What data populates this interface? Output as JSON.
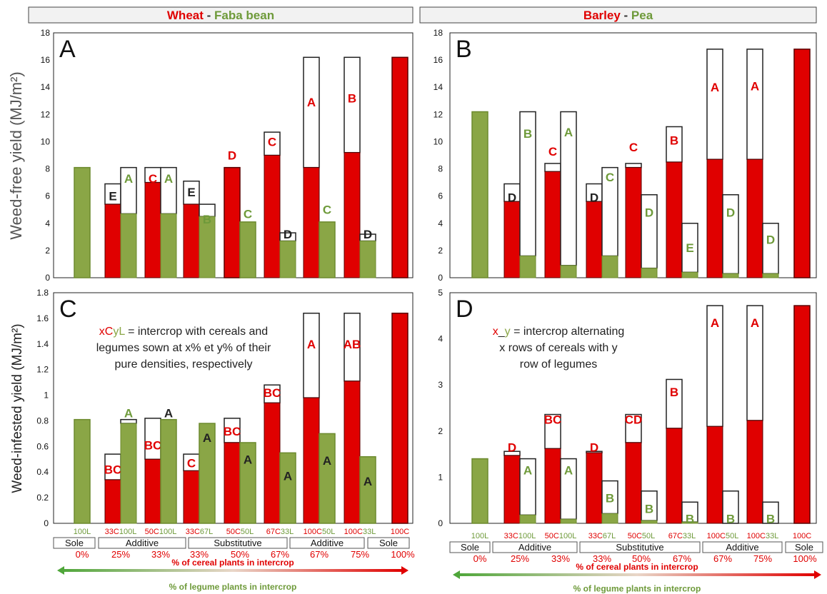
{
  "headers": {
    "left": {
      "cereal": "Wheat",
      "sep": " - ",
      "legume": "Faba bean"
    },
    "right": {
      "cereal": "Barley",
      "sep": " - ",
      "legume": "Pea"
    }
  },
  "colors": {
    "cereal": "#e00000",
    "legume": "#8aa646",
    "legume_text": "#6e9a3a",
    "dark_letter": "#222222"
  },
  "y_axis_titles": {
    "top": "Weed-free yield (MJ/m²)",
    "bottom": "Weed-infested yield (MJ/m²)"
  },
  "notes": {
    "C": {
      "lines": [
        [
          {
            "t": "xC",
            "c": "cereal"
          },
          {
            "t": "yL",
            "c": "legume"
          },
          {
            "t": " = intercrop with cereals and",
            "c": "black"
          }
        ],
        [
          {
            "t": "legumes sown at x% et y% of their",
            "c": "black"
          }
        ],
        [
          {
            "t": "pure densities, respectively",
            "c": "black"
          }
        ]
      ]
    },
    "D": {
      "lines": [
        [
          {
            "t": "x",
            "c": "cereal"
          },
          {
            "t": "_",
            "c": "black"
          },
          {
            "t": "y",
            "c": "legume"
          },
          {
            "t": " = intercrop alternating",
            "c": "black"
          }
        ],
        [
          {
            "t": "x rows of cereals with y",
            "c": "black"
          }
        ],
        [
          {
            "t": "row of legumes",
            "c": "black"
          }
        ]
      ]
    }
  },
  "bottom_axis": {
    "left": {
      "treatments": [
        {
          "c": "",
          "l": "100L"
        },
        {
          "c": "33C",
          "l": "100L"
        },
        {
          "c": "50C",
          "l": "100L"
        },
        {
          "c": "33C",
          "l": "67L"
        },
        {
          "c": "50C",
          "l": "50L"
        },
        {
          "c": "67C",
          "l": "33L"
        },
        {
          "c": "100C",
          "l": "50L"
        },
        {
          "c": "100C",
          "l": "33L"
        },
        {
          "c": "100C",
          "l": ""
        }
      ],
      "designs": [
        "Sole",
        "Additive",
        "Substitutive",
        "Additive",
        "Sole"
      ],
      "percents": [
        "0%",
        "25%",
        "33%",
        "33%",
        "50%",
        "67%",
        "67%",
        "75%",
        "100%"
      ]
    },
    "right": {
      "treatments": [
        {
          "c": "",
          "l": "100L"
        },
        {
          "c": "33C",
          "l": "100L"
        },
        {
          "c": "50C",
          "l": "100L"
        },
        {
          "c": "33C",
          "l": "67L"
        },
        {
          "c": "50C",
          "l": "50L"
        },
        {
          "c": "67C",
          "l": "33L"
        },
        {
          "c": "100C",
          "l": "50L"
        },
        {
          "c": "100C",
          "l": "33L"
        },
        {
          "c": "100C",
          "l": ""
        }
      ],
      "designs": [
        "Sole",
        "Additive",
        "Substitutive",
        "Additive",
        "Sole"
      ],
      "percents": [
        "0%",
        "25%",
        "33%",
        "33%",
        "50%",
        "67%",
        "67%",
        "75%",
        "100%"
      ]
    },
    "cereal_arrow_label": "% of cereal plants in intercrop",
    "legume_arrow_label": "% of legume plants in intercrop"
  },
  "chart_data": [
    {
      "panel": "A",
      "type": "bar",
      "ylim": [
        0,
        18
      ],
      "yticks": [
        0,
        2,
        4,
        6,
        8,
        10,
        12,
        14,
        16,
        18
      ],
      "groups": [
        {
          "bars": [
            {
              "kind": "L",
              "fill": 8.1,
              "total": 8.1
            }
          ]
        },
        {
          "bars": [
            {
              "kind": "C",
              "fill": 5.4,
              "total": 6.9,
              "letter": "E",
              "lc": "dark_letter",
              "lv": 6.0
            },
            {
              "kind": "L",
              "fill": 4.7,
              "total": 8.1,
              "letter": "A",
              "lc": "legume_text",
              "lv": 7.3
            }
          ]
        },
        {
          "bars": [
            {
              "kind": "C",
              "fill": 7.0,
              "total": 8.1,
              "letter": "C",
              "lc": "cereal",
              "lv": 7.3
            },
            {
              "kind": "L",
              "fill": 4.7,
              "total": 8.1,
              "letter": "A",
              "lc": "legume_text",
              "lv": 7.3
            }
          ]
        },
        {
          "bars": [
            {
              "kind": "C",
              "fill": 5.4,
              "total": 7.1,
              "letter": "E",
              "lc": "dark_letter",
              "lv": 6.3
            },
            {
              "kind": "L",
              "fill": 4.5,
              "total": 5.4,
              "letter": "B",
              "lc": "legume_text",
              "lv": 4.3
            }
          ]
        },
        {
          "bars": [
            {
              "kind": "C",
              "fill": 8.1,
              "total": 8.1,
              "letter": "D",
              "lc": "cereal",
              "lv": 9.0
            },
            {
              "kind": "L",
              "fill": 4.1,
              "total": 4.1,
              "letter": "C",
              "lc": "legume_text",
              "lv": 4.7
            }
          ]
        },
        {
          "bars": [
            {
              "kind": "C",
              "fill": 9.0,
              "total": 10.7,
              "letter": "C",
              "lc": "cereal",
              "lv": 10.0
            },
            {
              "kind": "L",
              "fill": 2.7,
              "total": 3.3,
              "letter": "D",
              "lc": "dark_letter",
              "lv": 3.2
            }
          ]
        },
        {
          "bars": [
            {
              "kind": "C",
              "fill": 8.1,
              "total": 16.2,
              "letter": "A",
              "lc": "cereal",
              "lv": 12.9
            },
            {
              "kind": "L",
              "fill": 4.1,
              "total": 4.1,
              "letter": "C",
              "lc": "legume_text",
              "lv": 5.0
            }
          ]
        },
        {
          "bars": [
            {
              "kind": "C",
              "fill": 9.2,
              "total": 16.2,
              "letter": "B",
              "lc": "cereal",
              "lv": 13.2
            },
            {
              "kind": "L",
              "fill": 2.7,
              "total": 3.2,
              "letter": "D",
              "lc": "dark_letter",
              "lv": 3.2
            }
          ]
        },
        {
          "bars": [
            {
              "kind": "C",
              "fill": 16.2,
              "total": 16.2
            }
          ]
        }
      ]
    },
    {
      "panel": "B",
      "type": "bar",
      "ylim": [
        0,
        18
      ],
      "yticks": [
        0,
        2,
        4,
        6,
        8,
        10,
        12,
        14,
        16,
        18
      ],
      "groups": [
        {
          "bars": [
            {
              "kind": "L",
              "fill": 12.2,
              "total": 12.2
            }
          ]
        },
        {
          "bars": [
            {
              "kind": "C",
              "fill": 5.6,
              "total": 6.9,
              "letter": "D",
              "lc": "dark_letter",
              "lv": 5.9
            },
            {
              "kind": "L",
              "fill": 1.6,
              "total": 12.2,
              "letter": "B",
              "lc": "legume_text",
              "lv": 10.6
            }
          ]
        },
        {
          "bars": [
            {
              "kind": "C",
              "fill": 7.8,
              "total": 8.4,
              "letter": "C",
              "lc": "cereal",
              "lv": 9.3
            },
            {
              "kind": "L",
              "fill": 0.9,
              "total": 12.2,
              "letter": "A",
              "lc": "legume_text",
              "lv": 10.7
            }
          ]
        },
        {
          "bars": [
            {
              "kind": "C",
              "fill": 5.6,
              "total": 6.9,
              "letter": "D",
              "lc": "dark_letter",
              "lv": 5.9
            },
            {
              "kind": "L",
              "fill": 1.6,
              "total": 8.1,
              "letter": "C",
              "lc": "legume_text",
              "lv": 7.4
            }
          ]
        },
        {
          "bars": [
            {
              "kind": "C",
              "fill": 8.1,
              "total": 8.4,
              "letter": "C",
              "lc": "cereal",
              "lv": 9.6
            },
            {
              "kind": "L",
              "fill": 0.7,
              "total": 6.1,
              "letter": "D",
              "lc": "legume_text",
              "lv": 4.8
            }
          ]
        },
        {
          "bars": [
            {
              "kind": "C",
              "fill": 8.5,
              "total": 11.1,
              "letter": "B",
              "lc": "cereal",
              "lv": 10.1
            },
            {
              "kind": "L",
              "fill": 0.4,
              "total": 4.0,
              "letter": "E",
              "lc": "legume_text",
              "lv": 2.2
            }
          ]
        },
        {
          "bars": [
            {
              "kind": "C",
              "fill": 8.7,
              "total": 16.8,
              "letter": "A",
              "lc": "cereal",
              "lv": 14.0
            },
            {
              "kind": "L",
              "fill": 0.3,
              "total": 6.1,
              "letter": "D",
              "lc": "legume_text",
              "lv": 4.8
            }
          ]
        },
        {
          "bars": [
            {
              "kind": "C",
              "fill": 8.7,
              "total": 16.8,
              "letter": "A",
              "lc": "cereal",
              "lv": 14.1
            },
            {
              "kind": "L",
              "fill": 0.3,
              "total": 4.0,
              "letter": "D",
              "lc": "legume_text",
              "lv": 2.8
            }
          ]
        },
        {
          "bars": [
            {
              "kind": "C",
              "fill": 16.8,
              "total": 16.8
            }
          ]
        }
      ]
    },
    {
      "panel": "C",
      "type": "bar",
      "ylim": [
        0,
        1.8
      ],
      "yticks": [
        0,
        0.2,
        0.4,
        0.6,
        0.8,
        1,
        1.2,
        1.4,
        1.6,
        1.8
      ],
      "groups": [
        {
          "bars": [
            {
              "kind": "L",
              "fill": 0.81,
              "total": 0.81
            }
          ]
        },
        {
          "bars": [
            {
              "kind": "C",
              "fill": 0.34,
              "total": 0.54,
              "letter": "BC",
              "lc": "cereal",
              "lv": 0.42
            },
            {
              "kind": "L",
              "fill": 0.78,
              "total": 0.81,
              "letter": "A",
              "lc": "legume_text",
              "lv": 0.86
            }
          ]
        },
        {
          "bars": [
            {
              "kind": "C",
              "fill": 0.5,
              "total": 0.82,
              "letter": "BC",
              "lc": "cereal",
              "lv": 0.61
            },
            {
              "kind": "L",
              "fill": 0.81,
              "total": 0.81,
              "letter": "A",
              "lc": "dark_letter",
              "lv": 0.86
            }
          ]
        },
        {
          "bars": [
            {
              "kind": "C",
              "fill": 0.41,
              "total": 0.54,
              "letter": "C",
              "lc": "cereal",
              "lv": 0.47
            },
            {
              "kind": "L",
              "fill": 0.78,
              "total": 0.78,
              "letter": "A",
              "lc": "dark_letter",
              "lv": 0.67
            }
          ]
        },
        {
          "bars": [
            {
              "kind": "C",
              "fill": 0.63,
              "total": 0.82,
              "letter": "BC",
              "lc": "cereal",
              "lv": 0.72
            },
            {
              "kind": "L",
              "fill": 0.63,
              "total": 0.63,
              "letter": "A",
              "lc": "dark_letter",
              "lv": 0.5
            }
          ]
        },
        {
          "bars": [
            {
              "kind": "C",
              "fill": 0.94,
              "total": 1.08,
              "letter": "BC",
              "lc": "cereal",
              "lv": 1.02
            },
            {
              "kind": "L",
              "fill": 0.55,
              "total": 0.55,
              "letter": "A",
              "lc": "dark_letter",
              "lv": 0.37
            }
          ]
        },
        {
          "bars": [
            {
              "kind": "C",
              "fill": 0.98,
              "total": 1.64,
              "letter": "A",
              "lc": "cereal",
              "lv": 1.4
            },
            {
              "kind": "L",
              "fill": 0.7,
              "total": 0.7,
              "letter": "A",
              "lc": "dark_letter",
              "lv": 0.49
            }
          ]
        },
        {
          "bars": [
            {
              "kind": "C",
              "fill": 1.11,
              "total": 1.64,
              "letter": "AB",
              "lc": "cereal",
              "lv": 1.4
            },
            {
              "kind": "L",
              "fill": 0.52,
              "total": 0.52,
              "letter": "A",
              "lc": "dark_letter",
              "lv": 0.33
            }
          ]
        },
        {
          "bars": [
            {
              "kind": "C",
              "fill": 1.64,
              "total": 1.64
            }
          ]
        }
      ]
    },
    {
      "panel": "D",
      "type": "bar",
      "ylim": [
        0,
        5
      ],
      "yticks": [
        0,
        1,
        2,
        3,
        4,
        5
      ],
      "groups": [
        {
          "bars": [
            {
              "kind": "L",
              "fill": 1.4,
              "total": 1.4
            }
          ]
        },
        {
          "bars": [
            {
              "kind": "C",
              "fill": 1.47,
              "total": 1.56,
              "letter": "D",
              "lc": "cereal",
              "lv": 1.65
            },
            {
              "kind": "L",
              "fill": 0.18,
              "total": 1.4,
              "letter": "A",
              "lc": "legume_text",
              "lv": 1.15
            }
          ]
        },
        {
          "bars": [
            {
              "kind": "C",
              "fill": 1.62,
              "total": 2.36,
              "letter": "BC",
              "lc": "cereal",
              "lv": 2.25
            },
            {
              "kind": "L",
              "fill": 0.09,
              "total": 1.4,
              "letter": "A",
              "lc": "legume_text",
              "lv": 1.15
            }
          ]
        },
        {
          "bars": [
            {
              "kind": "C",
              "fill": 1.53,
              "total": 1.56,
              "letter": "D",
              "lc": "cereal",
              "lv": 1.65
            },
            {
              "kind": "L",
              "fill": 0.21,
              "total": 0.92,
              "letter": "B",
              "lc": "legume_text",
              "lv": 0.55
            }
          ]
        },
        {
          "bars": [
            {
              "kind": "C",
              "fill": 1.75,
              "total": 2.36,
              "letter": "CD",
              "lc": "cereal",
              "lv": 2.25
            },
            {
              "kind": "L",
              "fill": 0.06,
              "total": 0.7,
              "letter": "B",
              "lc": "legume_text",
              "lv": 0.32
            }
          ]
        },
        {
          "bars": [
            {
              "kind": "C",
              "fill": 2.06,
              "total": 3.12,
              "letter": "B",
              "lc": "cereal",
              "lv": 2.85
            },
            {
              "kind": "L",
              "fill": 0.03,
              "total": 0.46,
              "letter": "B",
              "lc": "legume_text",
              "lv": 0.1
            }
          ]
        },
        {
          "bars": [
            {
              "kind": "C",
              "fill": 2.1,
              "total": 4.72,
              "letter": "A",
              "lc": "cereal",
              "lv": 4.35
            },
            {
              "kind": "L",
              "fill": 0.0,
              "total": 0.7,
              "letter": "B",
              "lc": "legume_text",
              "lv": 0.1
            }
          ]
        },
        {
          "bars": [
            {
              "kind": "C",
              "fill": 2.23,
              "total": 4.72,
              "letter": "A",
              "lc": "cereal",
              "lv": 4.35
            },
            {
              "kind": "L",
              "fill": 0.0,
              "total": 0.46,
              "letter": "B",
              "lc": "legume_text",
              "lv": 0.1
            }
          ]
        },
        {
          "bars": [
            {
              "kind": "C",
              "fill": 4.72,
              "total": 4.72
            }
          ]
        }
      ]
    }
  ]
}
